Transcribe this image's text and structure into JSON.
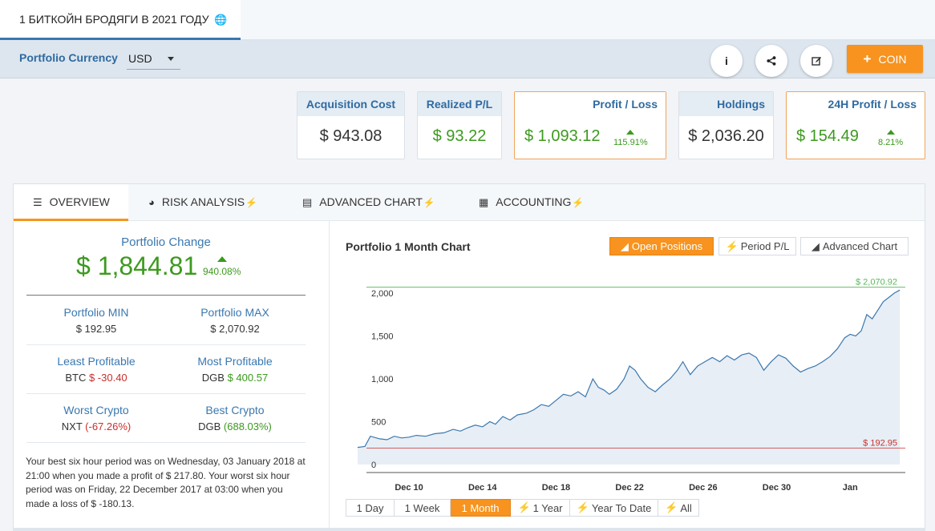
{
  "header": {
    "portfolio_tab": "1 БИТКОЙН БРОДЯГИ В 2021 ГОДУ",
    "globe_icon": "globe-icon"
  },
  "currency_bar": {
    "label": "Portfolio Currency",
    "selected": "USD",
    "info_icon": "i",
    "share_icon": "share-icon",
    "edit_icon": "edit-icon",
    "coin_button": "COIN",
    "accent_color": "#f7931e"
  },
  "stats": [
    {
      "label": "Acquisition Cost",
      "value": "$ 943.08"
    },
    {
      "label": "Realized P/L",
      "value": "$ 93.22"
    },
    {
      "label": "Profit / Loss",
      "value": "$ 1,093.12",
      "pct": "115.91%"
    },
    {
      "label": "Holdings",
      "value": "$ 2,036.20"
    },
    {
      "label": "24H Profit / Loss",
      "value": "$ 154.49",
      "pct": "8.21%"
    }
  ],
  "tabs": [
    {
      "label": "OVERVIEW",
      "icon": "balance-icon"
    },
    {
      "label": "RISK ANALYSIS",
      "icon": "pie-chart-icon"
    },
    {
      "label": "ADVANCED CHART",
      "icon": "bar-chart-icon"
    },
    {
      "label": "ACCOUNTING",
      "icon": "calculator-icon"
    }
  ],
  "overview": {
    "change_label": "Portfolio Change",
    "change_value": "$ 1,844.81",
    "change_pct": "940.08%",
    "min_label": "Portfolio MIN",
    "min_value": "$ 192.95",
    "max_label": "Portfolio MAX",
    "max_value": "$ 2,070.92",
    "least_label": "Least Profitable",
    "least_coin": "BTC",
    "least_value": "$ -30.40",
    "most_label": "Most Profitable",
    "most_coin": "DGB",
    "most_value": "$ 400.57",
    "worst_label": "Worst Crypto",
    "worst_coin": "NXT",
    "worst_value": "(-67.26%)",
    "best_label": "Best Crypto",
    "best_coin": "DGB",
    "best_value": "(688.03%)",
    "note": "Your best six hour period was on Wednesday, 03 January 2018 at 21:00 when you made a profit of $ 217.80. Your worst six hour period was on Friday, 22 December 2017 at 03:00 when you made a loss of $ -180.13."
  },
  "chart_panel": {
    "title": "Portfolio 1 Month Chart",
    "buttons": [
      "Open Positions",
      "Period P/L",
      "Advanced Chart"
    ],
    "ranges": [
      "1 Day",
      "1 Week",
      "1 Month",
      "1 Year",
      "Year To Date",
      "All"
    ],
    "active_range": "1 Month"
  },
  "chart_data": {
    "type": "area",
    "yticks": [
      0,
      500,
      1000,
      1500,
      2000
    ],
    "ytick_labels": [
      "0",
      "500",
      "1,000",
      "1,500",
      "2,000"
    ],
    "ylim": [
      0,
      2150
    ],
    "xtick_labels": [
      "Dec 10",
      "Dec 14",
      "Dec 18",
      "Dec 22",
      "Dec 26",
      "Dec 30",
      "Jan"
    ],
    "xtick_days": [
      1.6,
      5.6,
      9.6,
      13.6,
      17.6,
      21.6,
      25.6
    ],
    "xlim": [
      -1.5,
      28.6
    ],
    "max_line": {
      "value": 2070.92,
      "label": "$ 2,070.92",
      "color": "#5cb85c"
    },
    "min_line": {
      "value": 192.95,
      "label": "$ 192.95",
      "color": "#c9302c"
    },
    "series": [
      {
        "color": "#3a78b0",
        "fill": "#e8eef5",
        "values": [
          [
            -1.2,
            200
          ],
          [
            -0.8,
            210
          ],
          [
            -0.5,
            330
          ],
          [
            0,
            300
          ],
          [
            0.4,
            290
          ],
          [
            0.8,
            330
          ],
          [
            1.2,
            310
          ],
          [
            1.6,
            320
          ],
          [
            2.0,
            340
          ],
          [
            2.5,
            330
          ],
          [
            3.0,
            360
          ],
          [
            3.5,
            370
          ],
          [
            4.0,
            410
          ],
          [
            4.4,
            390
          ],
          [
            4.8,
            430
          ],
          [
            5.2,
            460
          ],
          [
            5.6,
            440
          ],
          [
            6.0,
            500
          ],
          [
            6.3,
            470
          ],
          [
            6.7,
            560
          ],
          [
            7.1,
            520
          ],
          [
            7.5,
            580
          ],
          [
            8.0,
            600
          ],
          [
            8.4,
            640
          ],
          [
            8.8,
            700
          ],
          [
            9.2,
            680
          ],
          [
            9.6,
            750
          ],
          [
            10.0,
            820
          ],
          [
            10.4,
            800
          ],
          [
            10.8,
            850
          ],
          [
            11.2,
            790
          ],
          [
            11.6,
            1000
          ],
          [
            11.9,
            900
          ],
          [
            12.2,
            870
          ],
          [
            12.5,
            820
          ],
          [
            12.9,
            880
          ],
          [
            13.3,
            1000
          ],
          [
            13.6,
            1150
          ],
          [
            13.9,
            1100
          ],
          [
            14.2,
            1000
          ],
          [
            14.6,
            900
          ],
          [
            15.0,
            850
          ],
          [
            15.4,
            930
          ],
          [
            15.8,
            1000
          ],
          [
            16.2,
            1100
          ],
          [
            16.5,
            1200
          ],
          [
            16.9,
            1050
          ],
          [
            17.3,
            1150
          ],
          [
            17.7,
            1200
          ],
          [
            18.1,
            1250
          ],
          [
            18.5,
            1200
          ],
          [
            18.9,
            1270
          ],
          [
            19.3,
            1220
          ],
          [
            19.7,
            1280
          ],
          [
            20.1,
            1300
          ],
          [
            20.5,
            1250
          ],
          [
            20.9,
            1100
          ],
          [
            21.3,
            1200
          ],
          [
            21.7,
            1280
          ],
          [
            22.1,
            1240
          ],
          [
            22.5,
            1150
          ],
          [
            22.9,
            1080
          ],
          [
            23.3,
            1120
          ],
          [
            23.7,
            1150
          ],
          [
            24.1,
            1200
          ],
          [
            24.5,
            1260
          ],
          [
            24.9,
            1350
          ],
          [
            25.3,
            1480
          ],
          [
            25.6,
            1520
          ],
          [
            25.9,
            1500
          ],
          [
            26.2,
            1560
          ],
          [
            26.5,
            1750
          ],
          [
            26.8,
            1700
          ],
          [
            27.1,
            1800
          ],
          [
            27.4,
            1900
          ],
          [
            27.7,
            1950
          ],
          [
            28.0,
            2000
          ],
          [
            28.3,
            2036
          ]
        ]
      }
    ],
    "grid": false
  }
}
